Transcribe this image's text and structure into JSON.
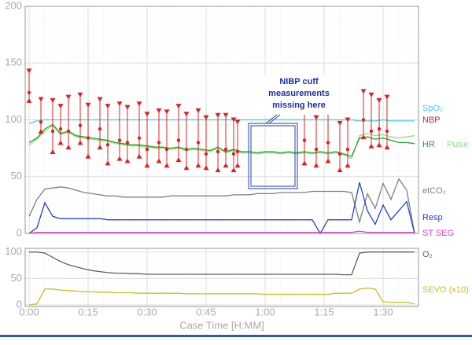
{
  "chart_data": [
    {
      "type": "line",
      "xlim": [
        -1,
        99
      ],
      "ylim": [
        0,
        200
      ],
      "yticks": [
        0,
        50,
        100,
        150,
        200
      ],
      "grid": true,
      "x": [
        0,
        2,
        4,
        6,
        8,
        10,
        12,
        14,
        16,
        18,
        20,
        22,
        24,
        26,
        28,
        30,
        32,
        34,
        36,
        38,
        40,
        42,
        44,
        46,
        48,
        50,
        52,
        54,
        56,
        58,
        60,
        62,
        64,
        66,
        68,
        70,
        72,
        74,
        76,
        78,
        80,
        82,
        84,
        86,
        88,
        90,
        92,
        94,
        96,
        98
      ],
      "series": [
        {
          "name": "SpO₂",
          "color": "#3ad6e0",
          "values": [
            97,
            99,
            100,
            100,
            100,
            100,
            100,
            100,
            100,
            100,
            100,
            100,
            100,
            100,
            100,
            100,
            100,
            100,
            100,
            100,
            100,
            100,
            100,
            100,
            100,
            100,
            100,
            100,
            100,
            100,
            100,
            100,
            100,
            100,
            100,
            100,
            100,
            100,
            100,
            100,
            100,
            100,
            99,
            99,
            99,
            100,
            99,
            99,
            99,
            99
          ]
        },
        {
          "name": "Pulse",
          "color": "#8edc8e",
          "values": [
            78,
            83,
            90,
            95,
            87,
            89,
            85,
            84,
            83,
            82,
            81,
            79,
            78,
            77,
            77,
            76,
            75,
            75,
            74,
            75,
            73,
            74,
            73,
            72,
            75,
            71,
            73,
            71,
            71,
            70,
            71,
            71,
            70,
            71,
            70,
            71,
            70,
            71,
            70,
            71,
            69,
            66,
            86,
            88,
            86,
            87,
            85,
            84,
            85,
            86
          ]
        },
        {
          "name": "HR",
          "color": "#22a822",
          "values": [
            80,
            84,
            92,
            96,
            88,
            90,
            86,
            85,
            84,
            83,
            82,
            80,
            79,
            78,
            78,
            77,
            76,
            76,
            75,
            76,
            74,
            75,
            74,
            73,
            76,
            72,
            74,
            72,
            72,
            71,
            72,
            72,
            71,
            72,
            71,
            72,
            71,
            72,
            71,
            72,
            70,
            68,
            84,
            85,
            83,
            84,
            82,
            80,
            80,
            79
          ]
        },
        {
          "name": "etCO₂",
          "color": "#808080",
          "values": [
            15,
            30,
            39,
            40,
            41,
            40,
            38,
            36,
            35,
            34,
            33,
            33,
            32,
            32,
            32,
            32,
            32,
            32,
            33,
            33,
            33,
            33,
            33,
            33,
            33,
            33,
            34,
            34,
            34,
            35,
            35,
            35,
            36,
            36,
            36,
            36,
            37,
            37,
            37,
            37,
            37,
            36,
            10,
            35,
            22,
            44,
            30,
            48,
            38,
            0
          ]
        },
        {
          "name": "Resp",
          "color": "#2444cc",
          "values": [
            0,
            5,
            27,
            15,
            13,
            13,
            13,
            13,
            13,
            13,
            12,
            12,
            12,
            12,
            12,
            12,
            12,
            12,
            12,
            12,
            12,
            12,
            12,
            12,
            12,
            12,
            12,
            12,
            12,
            12,
            12,
            12,
            12,
            12,
            12,
            12,
            12,
            0,
            12,
            12,
            12,
            12,
            45,
            20,
            8,
            25,
            12,
            20,
            28,
            0
          ]
        },
        {
          "name": "ST SEG",
          "color": "#e040c0",
          "values": [
            0,
            1,
            1,
            1,
            1,
            1,
            1,
            1,
            1,
            1,
            1,
            1,
            1,
            1,
            1,
            1,
            1,
            1,
            1,
            1,
            1,
            1,
            1,
            1,
            1,
            1,
            1,
            1,
            1,
            1,
            1,
            1,
            1,
            1,
            1,
            1,
            1,
            1,
            1,
            1,
            1,
            1,
            2,
            1,
            1,
            1,
            1,
            1,
            1,
            1
          ]
        }
      ],
      "nbp": {
        "name": "NBP",
        "color": "#e02020",
        "x": [
          0,
          3,
          6,
          8,
          10,
          13,
          15,
          18,
          20,
          23,
          25,
          28,
          30,
          33,
          35,
          38,
          40,
          43,
          45,
          48,
          50,
          52,
          53,
          70,
          73,
          76,
          79,
          81,
          85,
          87,
          89,
          91
        ],
        "systolic": [
          143,
          118,
          117,
          112,
          120,
          122,
          113,
          118,
          112,
          114,
          111,
          114,
          105,
          108,
          107,
          112,
          105,
          108,
          102,
          104,
          104,
          100,
          98,
          107,
          102,
          106,
          97,
          100,
          125,
          122,
          117,
          120
        ],
        "mean": [
          124,
          98,
          90,
          92,
          90,
          95,
          84,
          92,
          78,
          82,
          80,
          84,
          74,
          80,
          74,
          82,
          74,
          80,
          70,
          72,
          74,
          70,
          72,
          82,
          74,
          80,
          70,
          74,
          100,
          90,
          92,
          90
        ],
        "diastolic": [
          117,
          90,
          72,
          80,
          76,
          80,
          68,
          76,
          62,
          66,
          64,
          68,
          60,
          64,
          60,
          65,
          58,
          60,
          58,
          56,
          60,
          56,
          60,
          62,
          60,
          64,
          56,
          60,
          85,
          77,
          78,
          76
        ]
      },
      "annotation": [
        "NIBP cuff",
        "measurements",
        "missing here"
      ]
    },
    {
      "type": "line",
      "xlim": [
        -1,
        99
      ],
      "ylim": [
        -3,
        107
      ],
      "yticks": [
        0,
        50,
        100
      ],
      "grid": true,
      "xticks": [
        {
          "value": 0,
          "label": "0:00"
        },
        {
          "value": 15,
          "label": "0:15"
        },
        {
          "value": 30,
          "label": "0:30"
        },
        {
          "value": 45,
          "label": "0:45"
        },
        {
          "value": 60,
          "label": "1:00"
        },
        {
          "value": 75,
          "label": "1:15"
        },
        {
          "value": 90,
          "label": "1:30"
        }
      ],
      "xlabel": "Case Time [H:MM]",
      "x": [
        0,
        2,
        4,
        6,
        8,
        10,
        12,
        14,
        16,
        18,
        20,
        22,
        24,
        26,
        28,
        30,
        32,
        34,
        36,
        38,
        40,
        42,
        44,
        46,
        48,
        50,
        52,
        54,
        56,
        58,
        60,
        62,
        64,
        66,
        68,
        70,
        72,
        74,
        76,
        78,
        80,
        82,
        84,
        86,
        88,
        90,
        92,
        94,
        96,
        98
      ],
      "series": [
        {
          "name": "O₂",
          "color": "#606060",
          "values": [
            100,
            100,
            98,
            90,
            82,
            76,
            72,
            68,
            65,
            63,
            61,
            60,
            60,
            59,
            59,
            58,
            58,
            58,
            58,
            58,
            58,
            58,
            58,
            58,
            58,
            58,
            58,
            58,
            58,
            58,
            58,
            58,
            58,
            58,
            58,
            58,
            58,
            58,
            58,
            58,
            57,
            57,
            98,
            100,
            100,
            100,
            100,
            100,
            100,
            100
          ]
        },
        {
          "name": "SEVO (x10)",
          "color": "#c8c020",
          "values": [
            0,
            2,
            30,
            30,
            28,
            27,
            26,
            25,
            25,
            24,
            24,
            23,
            23,
            23,
            22,
            22,
            22,
            22,
            22,
            22,
            21,
            21,
            21,
            21,
            21,
            21,
            21,
            21,
            21,
            21,
            20,
            20,
            20,
            20,
            20,
            20,
            20,
            20,
            20,
            22,
            22,
            22,
            30,
            32,
            30,
            6,
            5,
            5,
            5,
            2
          ]
        }
      ]
    }
  ]
}
